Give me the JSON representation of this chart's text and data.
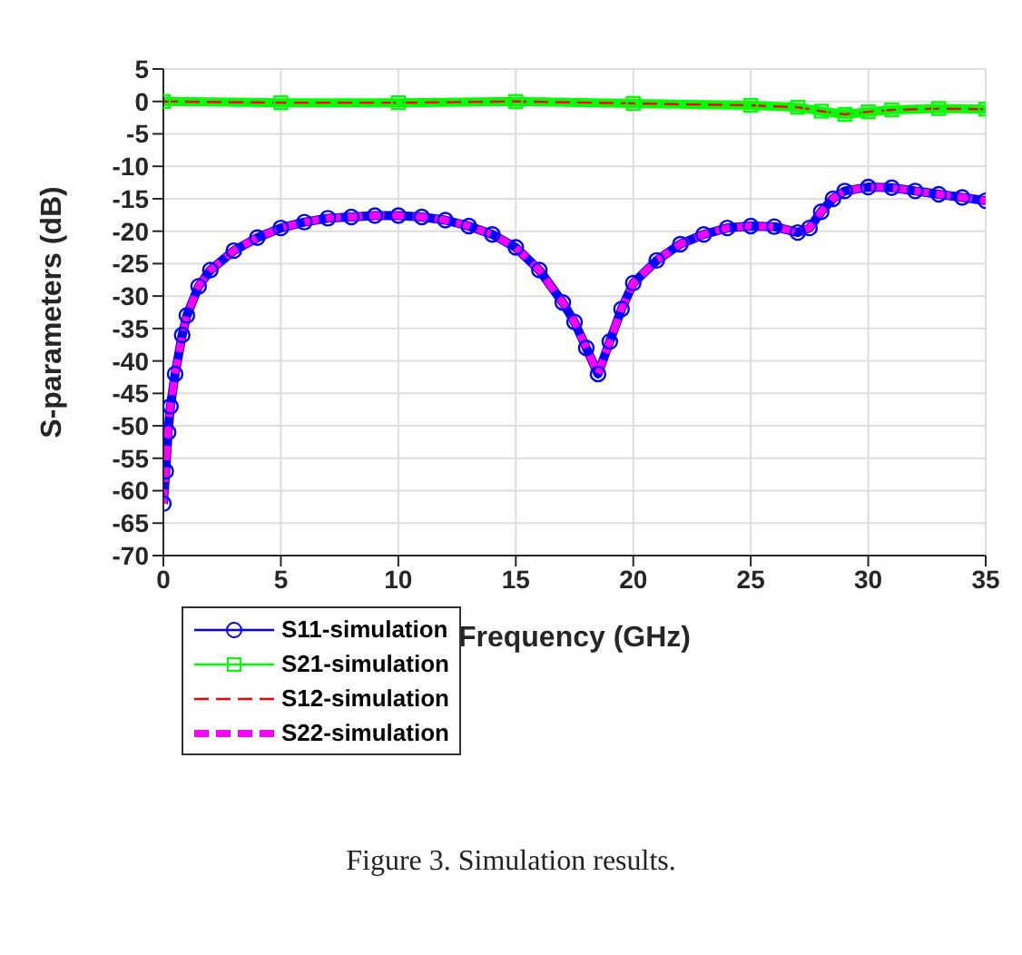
{
  "chart_data": {
    "type": "line",
    "xlabel": "Frequency (GHz)",
    "ylabel": "S-parameters (dB)",
    "x": [
      0,
      0.1,
      0.2,
      0.3,
      0.5,
      0.8,
      1,
      1.5,
      2,
      3,
      4,
      5,
      6,
      7,
      8,
      9,
      10,
      11,
      12,
      13,
      14,
      15,
      16,
      17,
      17.5,
      18,
      18.5,
      19,
      19.5,
      20,
      21,
      22,
      23,
      24,
      25,
      26,
      27,
      27.5,
      28,
      28.5,
      29,
      30,
      31,
      32,
      33,
      34,
      35
    ],
    "series": [
      {
        "name": "S11-simulation",
        "color": "#0000ff",
        "marker": "circle",
        "line_style": "solid",
        "values": [
          -62,
          -57,
          -51,
          -47,
          -42,
          -36,
          -33,
          -28.5,
          -26,
          -23,
          -21,
          -19.5,
          -18.6,
          -18,
          -17.8,
          -17.6,
          -17.6,
          -17.8,
          -18.3,
          -19.2,
          -20.5,
          -22.5,
          -26,
          -31,
          -34,
          -38,
          -42,
          -37,
          -32,
          -28,
          -24.5,
          -22,
          -20.5,
          -19.5,
          -19.2,
          -19.3,
          -20.2,
          -19.5,
          -17,
          -15,
          -13.8,
          -13.2,
          -13.3,
          -13.8,
          -14.3,
          -14.8,
          -15.3
        ]
      },
      {
        "name": "S21-simulation",
        "color": "#00ff00",
        "marker": "square",
        "line_style": "solid",
        "x": [
          0,
          5,
          10,
          15,
          20,
          25,
          27,
          28,
          29,
          30,
          31,
          33,
          35
        ],
        "values": [
          0,
          -0.2,
          -0.2,
          0,
          -0.3,
          -0.6,
          -0.9,
          -1.5,
          -2,
          -1.6,
          -1.3,
          -1.1,
          -1.2
        ]
      },
      {
        "name": "S12-simulation",
        "color": "#ff0000",
        "marker": "none",
        "line_style": "dashed",
        "x": [
          0,
          5,
          10,
          15,
          20,
          25,
          27,
          28,
          29,
          30,
          31,
          33,
          35
        ],
        "values": [
          0,
          -0.2,
          -0.2,
          0,
          -0.3,
          -0.6,
          -0.9,
          -1.5,
          -2,
          -1.6,
          -1.3,
          -1.1,
          -1.2
        ]
      },
      {
        "name": "S22-simulation",
        "color": "#ff00ff",
        "marker": "none",
        "line_style": "dashed",
        "values": [
          -62,
          -57,
          -51,
          -47,
          -42,
          -36,
          -33,
          -28.5,
          -26,
          -23,
          -21,
          -19.5,
          -18.6,
          -18,
          -17.8,
          -17.6,
          -17.6,
          -17.8,
          -18.3,
          -19.2,
          -20.5,
          -22.5,
          -26,
          -31,
          -34,
          -38,
          -42,
          -37,
          -32,
          -28,
          -24.5,
          -22,
          -20.5,
          -19.5,
          -19.2,
          -19.3,
          -20.2,
          -19.5,
          -17,
          -15,
          -13.8,
          -13.2,
          -13.3,
          -13.8,
          -14.3,
          -14.8,
          -15.3
        ]
      }
    ],
    "xlim": [
      0,
      35
    ],
    "xticks": [
      0,
      5,
      10,
      15,
      20,
      25,
      30,
      35
    ],
    "ylim": [
      -70,
      5
    ],
    "yticks": [
      -70,
      -65,
      -60,
      -55,
      -50,
      -45,
      -40,
      -35,
      -30,
      -25,
      -20,
      -15,
      -10,
      -5,
      0,
      5
    ],
    "grid": true,
    "legend": "bottom left",
    "annotations": [
      "Figure 3. Simulation results."
    ]
  }
}
